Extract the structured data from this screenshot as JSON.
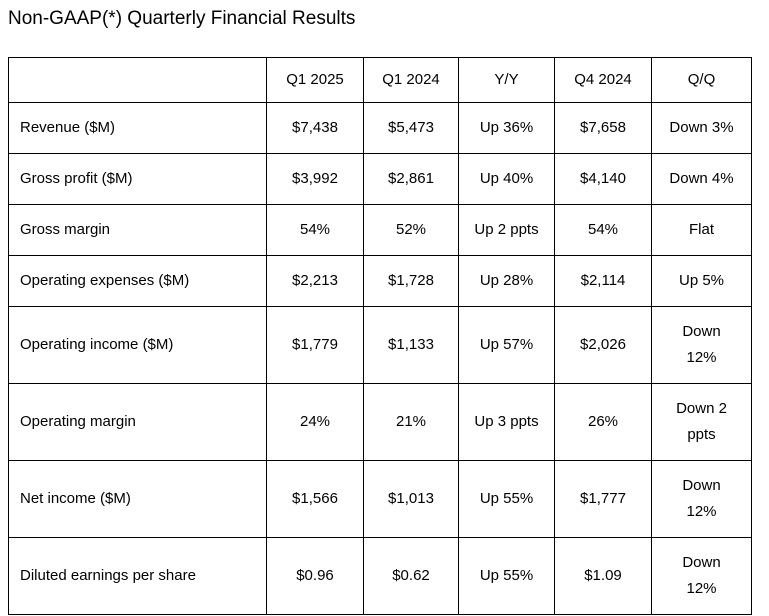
{
  "title": "Non-GAAP(*) Quarterly Financial Results",
  "colors": {
    "background": "#ffffff",
    "text": "#000000",
    "border": "#000000"
  },
  "chart_data": {
    "type": "table",
    "title": "Non-GAAP(*) Quarterly Financial Results",
    "columns": [
      "",
      "Q1 2025",
      "Q1 2024",
      "Y/Y",
      "Q4 2024",
      "Q/Q"
    ],
    "rows": [
      [
        "Revenue ($M)",
        "$7,438",
        "$5,473",
        "Up 36%",
        "$7,658",
        "Down 3%"
      ],
      [
        "Gross profit ($M)",
        "$3,992",
        "$2,861",
        "Up 40%",
        "$4,140",
        "Down 4%"
      ],
      [
        "Gross margin",
        "54%",
        "52%",
        "Up 2 ppts",
        "54%",
        "Flat"
      ],
      [
        "Operating expenses ($M)",
        "$2,213",
        "$1,728",
        "Up 28%",
        "$2,114",
        "Up 5%"
      ],
      [
        "Operating income ($M)",
        "$1,779",
        "$1,133",
        "Up 57%",
        "$2,026",
        "Down\n12%"
      ],
      [
        "Operating margin",
        "24%",
        "21%",
        "Up 3 ppts",
        "26%",
        "Down 2\nppts"
      ],
      [
        "Net income ($M)",
        "$1,566",
        "$1,013",
        "Up 55%",
        "$1,777",
        "Down\n12%"
      ],
      [
        "Diluted earnings per share",
        "$0.96",
        "$0.62",
        "Up 55%",
        "$1.09",
        "Down\n12%"
      ]
    ]
  }
}
